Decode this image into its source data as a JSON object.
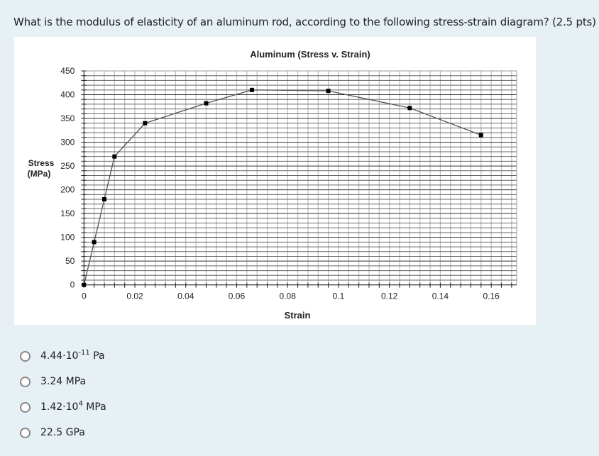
{
  "question": {
    "text": "What is the modulus of elasticity of an aluminum rod, according to the following stress-strain diagram? (2.5 pts)"
  },
  "options": [
    {
      "base": "4.44·10",
      "sup": "-11",
      "unit": " Pa"
    },
    {
      "base": "3.24 MPa",
      "sup": "",
      "unit": ""
    },
    {
      "base": "1.42·10",
      "sup": "4",
      "unit": " MPa"
    },
    {
      "base": "22.5 GPa",
      "sup": "",
      "unit": ""
    }
  ],
  "chart_data": {
    "type": "line",
    "title": "Aluminum (Stress v. Strain)",
    "xlabel": "Strain",
    "ylabel": [
      "Stress",
      "(MPa)"
    ],
    "xlim": [
      0,
      0.17
    ],
    "ylim": [
      0,
      450
    ],
    "x_ticks": [
      "0",
      "0.02",
      "0.04",
      "0.06",
      "0.08",
      "0.1",
      "0.12",
      "0.14",
      "0.16"
    ],
    "y_ticks": [
      "0",
      "50",
      "100",
      "150",
      "200",
      "250",
      "300",
      "350",
      "400",
      "450"
    ],
    "grid": true,
    "legend": "none",
    "marker": "square",
    "line_color": "#555555",
    "marker_color": "#000000",
    "x": [
      0,
      0.004,
      0.008,
      0.012,
      0.024,
      0.048,
      0.066,
      0.096,
      0.128,
      0.156
    ],
    "y": [
      0,
      90,
      180,
      270,
      340,
      382,
      410,
      408,
      372,
      315
    ]
  }
}
